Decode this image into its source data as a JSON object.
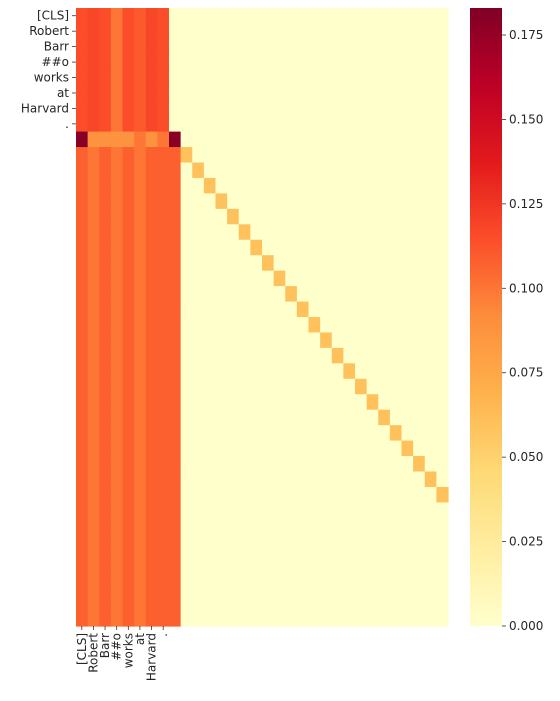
{
  "chart_data": {
    "type": "heatmap",
    "title": "",
    "xlabel": "",
    "ylabel": "",
    "x_tick_labels": [
      "[CLS]",
      "Robert",
      "Barr",
      "##o",
      "works",
      "at",
      "Harvard",
      "."
    ],
    "y_tick_labels": [
      "[CLS]",
      "Robert",
      "Barr",
      "##o",
      "works",
      "at",
      "Harvard",
      "."
    ],
    "num_rows": 40,
    "num_cols": 32,
    "head_rows": [
      [
        0.115,
        0.118,
        0.115,
        0.1,
        0.115,
        0.11,
        0.118,
        0.115
      ],
      [
        0.115,
        0.118,
        0.115,
        0.1,
        0.115,
        0.11,
        0.118,
        0.115
      ],
      [
        0.115,
        0.118,
        0.115,
        0.1,
        0.115,
        0.11,
        0.118,
        0.115
      ],
      [
        0.115,
        0.118,
        0.115,
        0.1,
        0.115,
        0.11,
        0.118,
        0.115
      ],
      [
        0.115,
        0.118,
        0.115,
        0.1,
        0.115,
        0.11,
        0.118,
        0.115
      ],
      [
        0.115,
        0.118,
        0.115,
        0.1,
        0.115,
        0.11,
        0.118,
        0.115
      ],
      [
        0.115,
        0.118,
        0.115,
        0.1,
        0.115,
        0.11,
        0.118,
        0.115
      ],
      [
        0.115,
        0.118,
        0.115,
        0.1,
        0.115,
        0.11,
        0.118,
        0.115
      ]
    ],
    "separator_row": [
      0.18,
      0.088,
      0.088,
      0.088,
      0.088,
      0.1,
      0.088,
      0.1,
      0.18
    ],
    "body_row": [
      0.108,
      0.1,
      0.108,
      0.1,
      0.108,
      0.1,
      0.108,
      0.108,
      0.108
    ],
    "diagonal_value": 0.06,
    "vmin": 0.0,
    "vmax": 0.183,
    "colormap": "YlOrRd",
    "colorbar_ticks": [
      "0.000",
      "0.025",
      "0.050",
      "0.075",
      "0.100",
      "0.125",
      "0.150",
      "0.175"
    ],
    "colorbar_tick_values": [
      0.0,
      0.025,
      0.05,
      0.075,
      0.1,
      0.125,
      0.15,
      0.175
    ],
    "grid": false,
    "legend": "colorbar-right"
  }
}
